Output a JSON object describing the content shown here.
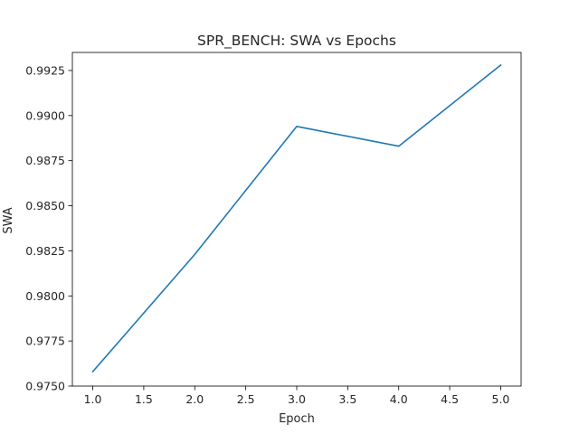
{
  "chart_data": {
    "type": "line",
    "title": "SPR_BENCH: SWA vs Epochs",
    "xlabel": "Epoch",
    "ylabel": "SWA",
    "xlim": [
      0.8,
      5.2
    ],
    "ylim": [
      0.975,
      0.9935
    ],
    "x_ticks": [
      1.0,
      1.5,
      2.0,
      2.5,
      3.0,
      3.5,
      4.0,
      4.5,
      5.0
    ],
    "x_tick_labels": [
      "1.0",
      "1.5",
      "2.0",
      "2.5",
      "3.0",
      "3.5",
      "4.0",
      "4.5",
      "5.0"
    ],
    "y_ticks": [
      0.975,
      0.9775,
      0.98,
      0.9825,
      0.985,
      0.9875,
      0.99,
      0.9925
    ],
    "y_tick_labels": [
      "0.9750",
      "0.9775",
      "0.9800",
      "0.9825",
      "0.9850",
      "0.9875",
      "0.9900",
      "0.9925"
    ],
    "grid": false,
    "series": [
      {
        "color": "#1f77b4",
        "x": [
          1,
          2,
          3,
          4,
          5
        ],
        "values": [
          0.9758,
          0.9823,
          0.9894,
          0.9883,
          0.9928
        ]
      }
    ]
  }
}
